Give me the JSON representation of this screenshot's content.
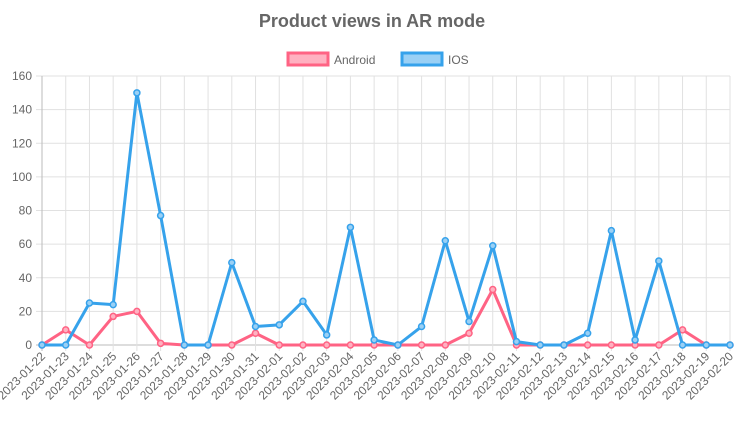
{
  "chart_data": {
    "type": "line",
    "title": "Product views in AR mode",
    "legend_position": "top",
    "grid": true,
    "ylim": [
      0,
      160
    ],
    "yticks": [
      0,
      20,
      40,
      60,
      80,
      100,
      120,
      140,
      160
    ],
    "x": [
      "2023-01-22",
      "2023-01-23",
      "2023-01-24",
      "2023-01-25",
      "2023-01-26",
      "2023-01-27",
      "2023-01-28",
      "2023-01-29",
      "2023-01-30",
      "2023-01-31",
      "2023-02-01",
      "2023-02-02",
      "2023-02-03",
      "2023-02-04",
      "2023-02-05",
      "2023-02-06",
      "2023-02-07",
      "2023-02-08",
      "2023-02-09",
      "2023-02-10",
      "2023-02-11",
      "2023-02-12",
      "2023-02-13",
      "2023-02-14",
      "2023-02-15",
      "2023-02-16",
      "2023-02-17",
      "2023-02-18",
      "2023-02-19",
      "2023-02-20"
    ],
    "series": [
      {
        "name": "Android",
        "color": "#ff6384",
        "fill": "#ffb1c1",
        "values": [
          0,
          9,
          0,
          17,
          20,
          1,
          0,
          0,
          0,
          7,
          0,
          0,
          0,
          0,
          0,
          0,
          0,
          0,
          7,
          33,
          0,
          0,
          0,
          0,
          0,
          0,
          0,
          9,
          0,
          0
        ]
      },
      {
        "name": "IOS",
        "color": "#36a2eb",
        "fill": "#9ad0f5",
        "values": [
          0,
          0,
          25,
          24,
          150,
          77,
          0,
          0,
          49,
          11,
          12,
          26,
          6,
          70,
          3,
          0,
          11,
          62,
          14,
          59,
          2,
          0,
          0,
          7,
          68,
          3,
          50,
          0,
          0,
          0
        ]
      }
    ]
  }
}
